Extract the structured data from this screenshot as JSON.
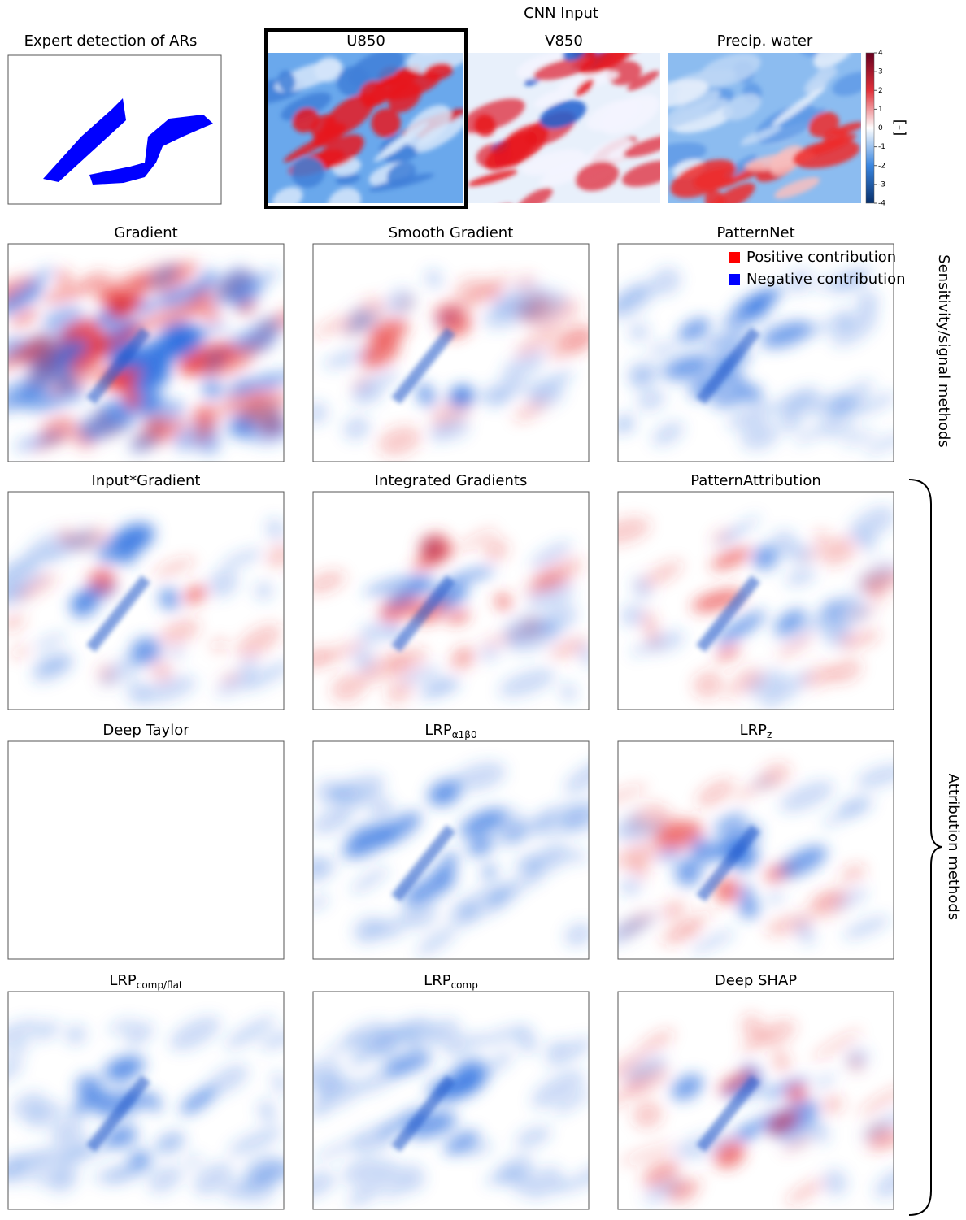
{
  "header": {
    "title": "CNN Input"
  },
  "expert": {
    "title": "Expert detection of ARs"
  },
  "inputs": [
    {
      "title": "U850"
    },
    {
      "title": "V850"
    },
    {
      "title": "Precip. water"
    }
  ],
  "colorbar": {
    "ticks": [
      4,
      3,
      2,
      1,
      0,
      -1,
      -2,
      -3,
      -4
    ],
    "unit": "[-]"
  },
  "legend": [
    "Positive contribution",
    "Negative contribution"
  ],
  "panels": [
    {
      "title": "Gradient"
    },
    {
      "title": "Smooth Gradient"
    },
    {
      "title": "PatternNet"
    },
    {
      "title": "Input*Gradient"
    },
    {
      "title": "Integrated Gradients"
    },
    {
      "title": "PatternAttribution"
    },
    {
      "title": "Deep Taylor"
    },
    {
      "title": "LRP",
      "subscript": "α1β0"
    },
    {
      "title": "LRP",
      "subscript": "z"
    },
    {
      "title": "LRP",
      "subscript": "comp/flat"
    },
    {
      "title": "LRP",
      "subscript": "comp"
    },
    {
      "title": "Deep SHAP"
    }
  ],
  "side_labels": [
    "Sensitivity/signal methods",
    "Attribution methods"
  ]
}
